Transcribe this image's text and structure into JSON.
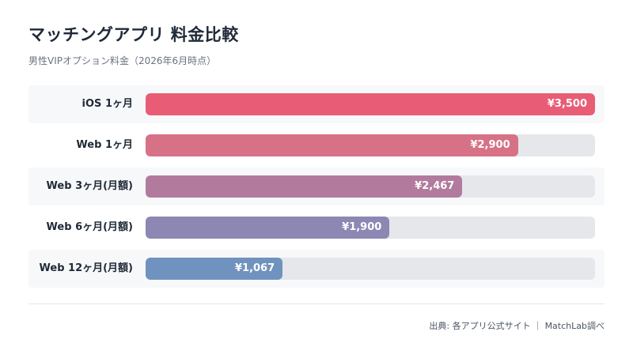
{
  "title": "マッチングアプリ 料金比較",
  "subtitle": "男性VIPオプション料金（2026年6月時点）",
  "source": "出典: 各アプリ公式サイト ｜ MatchLab調べ",
  "chart_data": {
    "type": "bar",
    "orientation": "horizontal",
    "categories": [
      "iOS 1ヶ月",
      "Web 1ヶ月",
      "Web 3ヶ月(月額)",
      "Web 6ヶ月(月額)",
      "Web 12ヶ月(月額)"
    ],
    "values": [
      3500,
      2900,
      2467,
      1900,
      1067
    ],
    "value_labels": [
      "¥3,500",
      "¥2,900",
      "¥2,467",
      "¥1,900",
      "¥1,067"
    ],
    "colors": [
      "#e85d75",
      "#d67186",
      "#b27b9e",
      "#8c87b3",
      "#7092be"
    ],
    "xlim": [
      0,
      3500
    ],
    "grid": false,
    "legend": "none"
  }
}
